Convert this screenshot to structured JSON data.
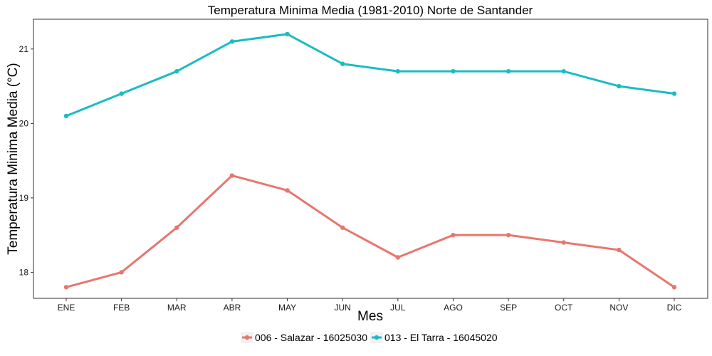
{
  "chart_data": {
    "type": "line",
    "title": "Temperatura Minima Media (1981-2010)  Norte de Santander",
    "xlabel": "Mes",
    "ylabel": "Temperatura Minima Media  (°C)",
    "categories": [
      "ENE",
      "FEB",
      "MAR",
      "ABR",
      "MAY",
      "JUN",
      "JUL",
      "AGO",
      "SEP",
      "OCT",
      "NOV",
      "DIC"
    ],
    "ylim": [
      17.65,
      21.4
    ],
    "yticks": [
      "18",
      "19",
      "20",
      "21"
    ],
    "grid": false,
    "legend_position": "bottom",
    "series": [
      {
        "name": "006 - Salazar - 16025030",
        "color": "#E8766F",
        "values": [
          17.8,
          18.0,
          18.6,
          19.3,
          19.1,
          18.6,
          18.2,
          18.5,
          18.5,
          18.4,
          18.3,
          17.8
        ]
      },
      {
        "name": "013 - El Tarra - 16045020",
        "color": "#1ABCC1",
        "values": [
          20.1,
          20.4,
          20.7,
          21.1,
          21.2,
          20.8,
          20.7,
          20.7,
          20.7,
          20.7,
          20.5,
          20.4
        ]
      }
    ]
  }
}
